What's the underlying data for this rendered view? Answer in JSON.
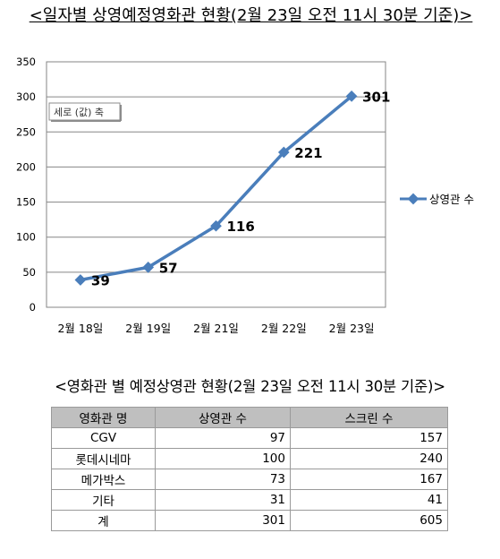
{
  "chart_title": "<일자별 상영예정영화관 현황(2월 23일 오전 11시 30분 기준)>",
  "axis_tooltip": "세로 (값) 축",
  "chart_data": {
    "type": "line",
    "categories": [
      "2월 18일",
      "2월 19일",
      "2월 21일",
      "2월 22일",
      "2월 23일"
    ],
    "series": [
      {
        "name": "상영관 수",
        "values": [
          39,
          57,
          116,
          221,
          301
        ]
      }
    ],
    "ylim": [
      0,
      350
    ],
    "yticks": [
      0,
      50,
      100,
      150,
      200,
      250,
      300,
      350
    ],
    "grid": true,
    "legend": "right",
    "series_color": "#4a7ebb"
  },
  "table_title": "<영화관 별 예정상영관 현황(2월 23일 오전 11시 30분 기준)>",
  "table": {
    "headers": [
      "영화관 명",
      "상영관 수",
      "스크린 수"
    ],
    "rows": [
      [
        "CGV",
        "97",
        "157"
      ],
      [
        "롯데시네마",
        "100",
        "240"
      ],
      [
        "메가박스",
        "73",
        "167"
      ],
      [
        "기타",
        "31",
        "41"
      ],
      [
        "계",
        "301",
        "605"
      ]
    ]
  }
}
